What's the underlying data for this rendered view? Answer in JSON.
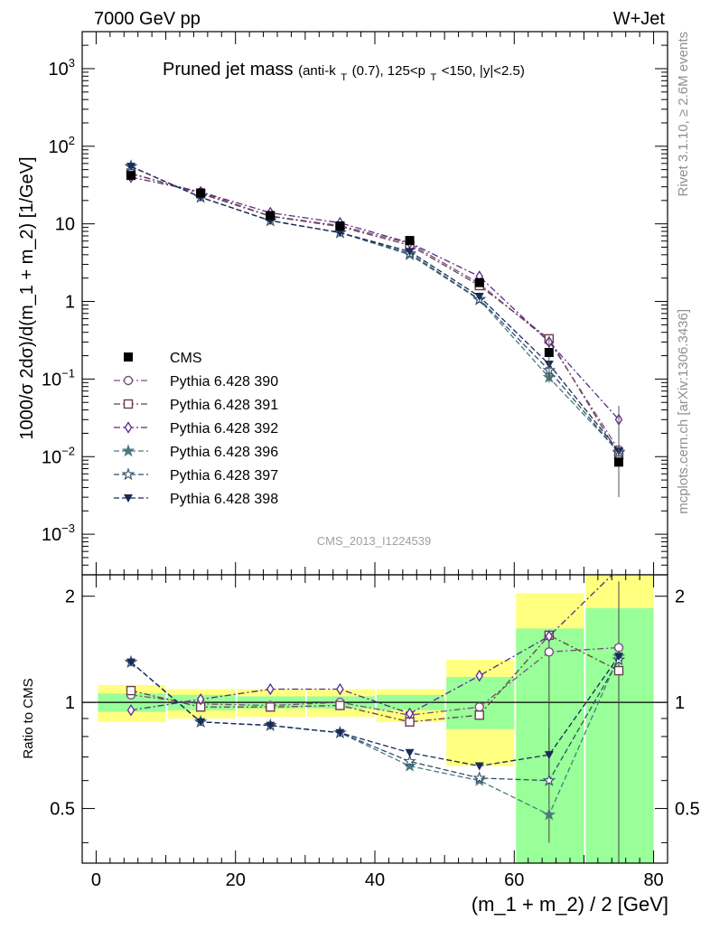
{
  "header": {
    "left": "7000 GeV pp",
    "right": "W+Jet"
  },
  "side_labels": {
    "rivet": "Rivet 3.1.10, ≥ 2.6M events",
    "mcplots": "mcplots.cern.ch [arXiv:1306.3436]"
  },
  "watermark": "CMS_2013_I1224539",
  "colors": {
    "cms": "#000000",
    "p390": "#7a4f80",
    "p391": "#6b3d4a",
    "p392": "#5a2a8a",
    "p396": "#4a7a80",
    "p397": "#2f4f6a",
    "p398": "#1a2a5a",
    "band_inner": "#99ff99",
    "band_outer": "#ffff80"
  },
  "chart_data": [
    {
      "type": "line",
      "title_main": "Pruned jet mass",
      "title_detail": {
        "pre": "(anti-k",
        "sub1": "T",
        "mid": "(0.7), 125<p",
        "sub2": "T",
        "post": "<150, |y|<2.5)"
      },
      "ylabel": "1000/σ 2dσ)/d(m_1 + m_2) [1/GeV]",
      "yscale": "log",
      "xlim": [
        -2,
        82
      ],
      "ylim": [
        0.0003,
        3000
      ],
      "yticks": [
        {
          "label": "10",
          "sup": "3",
          "value": 1000
        },
        {
          "label": "10",
          "sup": "2",
          "value": 100
        },
        {
          "label": "10",
          "sup": "",
          "value": 10
        },
        {
          "label": "1",
          "sup": "",
          "value": 1
        },
        {
          "label": "10",
          "sup": "−1",
          "value": 0.1
        },
        {
          "label": "10",
          "sup": "−2",
          "value": 0.01
        },
        {
          "label": "10",
          "sup": "−3",
          "value": 0.001
        }
      ],
      "legend_position": "lower-left",
      "x": [
        5,
        15,
        25,
        35,
        45,
        55,
        65,
        75
      ],
      "x_edges": [
        0,
        10,
        20,
        30,
        40,
        50,
        60,
        70,
        80
      ],
      "cms": {
        "name": "CMS",
        "values": [
          42,
          25,
          12.8,
          9.4,
          6.1,
          1.75,
          0.22,
          0.0085
        ]
      },
      "series": [
        {
          "name": "Pythia 6.428 390",
          "marker": "circle",
          "dash": "dashdot",
          "color_key": "p390",
          "values": [
            44,
            25.5,
            12.6,
            9.5,
            5.6,
            1.7,
            0.31,
            0.0122
          ]
        },
        {
          "name": "Pythia 6.428 391",
          "marker": "square",
          "dash": "dashdot",
          "color_key": "p391",
          "values": [
            45,
            24.5,
            12.5,
            9.2,
            5.3,
            1.6,
            0.33,
            0.0106
          ]
        },
        {
          "name": "Pythia 6.428 392",
          "marker": "diamond",
          "dash": "dashdot",
          "color_key": "p392",
          "values": [
            40,
            25.8,
            13.9,
            10.3,
            5.7,
            2.1,
            0.3,
            0.03
          ]
        },
        {
          "name": "Pythia 6.428 396",
          "marker": "star-filled",
          "dash": "dash",
          "color_key": "p396",
          "values": [
            55,
            22,
            11,
            7.7,
            4.0,
            1.05,
            0.105,
            0.0115
          ]
        },
        {
          "name": "Pythia 6.428 397",
          "marker": "star-open",
          "dash": "dash",
          "color_key": "p397",
          "values": [
            55,
            22,
            11,
            7.7,
            4.15,
            1.07,
            0.13,
            0.0112
          ]
        },
        {
          "name": "Pythia 6.428 398",
          "marker": "triangle-down",
          "dash": "dash",
          "color_key": "p398",
          "values": [
            55,
            22,
            11,
            7.7,
            4.4,
            1.16,
            0.155,
            0.0118
          ]
        }
      ]
    },
    {
      "type": "line",
      "ylabel": "Ratio to CMS",
      "xlabel": "(m_1 + m_2) / 2 [GeV]",
      "xlim": [
        -2,
        82
      ],
      "ylim": [
        0.35,
        2.3
      ],
      "xticks": [
        0,
        20,
        40,
        60,
        80
      ],
      "yticks": [
        0.5,
        1,
        2
      ],
      "reference_line": 1,
      "band_inner": [
        [
          0.94,
          1.06
        ],
        [
          0.95,
          1.05
        ],
        [
          0.96,
          1.04
        ],
        [
          0.96,
          1.04
        ],
        [
          0.95,
          1.05
        ],
        [
          0.84,
          1.18
        ],
        [
          0.23,
          1.62
        ],
        [
          0.2,
          1.85
        ]
      ],
      "band_outer": [
        [
          0.88,
          1.12
        ],
        [
          0.9,
          1.09
        ],
        [
          0.91,
          1.09
        ],
        [
          0.91,
          1.09
        ],
        [
          0.88,
          1.09
        ],
        [
          0.66,
          1.32
        ],
        [
          0.45,
          2.04
        ],
        [
          0.2,
          2.4
        ]
      ],
      "series": [
        {
          "name": "Pythia 6.428 390",
          "values": [
            1.05,
            0.99,
            0.98,
            1.0,
            0.92,
            0.97,
            1.39,
            1.43
          ]
        },
        {
          "name": "Pythia 6.428 391",
          "values": [
            1.08,
            0.97,
            0.97,
            0.98,
            0.88,
            0.92,
            1.55,
            1.23
          ]
        },
        {
          "name": "Pythia 6.428 392",
          "values": [
            0.95,
            1.02,
            1.09,
            1.09,
            0.93,
            1.19,
            1.54,
            2.4
          ]
        },
        {
          "name": "Pythia 6.428 396",
          "values": [
            1.3,
            0.88,
            0.86,
            0.82,
            0.66,
            0.6,
            0.48,
            1.35
          ]
        },
        {
          "name": "Pythia 6.428 397",
          "values": [
            1.3,
            0.88,
            0.86,
            0.82,
            0.68,
            0.61,
            0.6,
            1.32
          ]
        },
        {
          "name": "Pythia 6.428 398",
          "values": [
            1.3,
            0.88,
            0.86,
            0.82,
            0.72,
            0.66,
            0.71,
            1.35
          ]
        }
      ]
    }
  ]
}
